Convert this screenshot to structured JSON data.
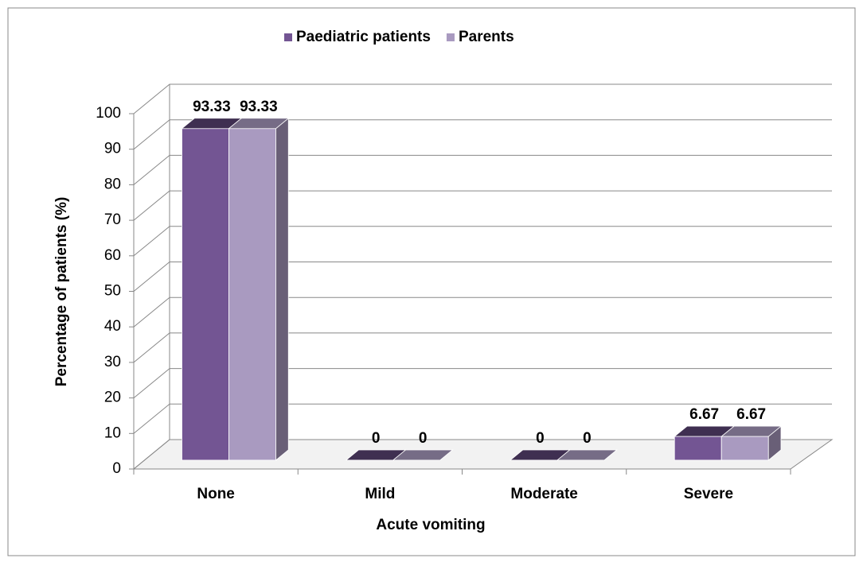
{
  "chart_data": {
    "type": "bar3d",
    "x_label": "Acute vomiting",
    "y_label": "Percentage of patients (%)",
    "categories": [
      "None",
      "Mild",
      "Moderate",
      "Severe"
    ],
    "series": [
      {
        "name": "Paediatric patients",
        "color": "#735593",
        "values": [
          93.33,
          0,
          0,
          6.67
        ]
      },
      {
        "name": "Parents",
        "color": "#a99ac0",
        "values": [
          93.33,
          0,
          0,
          6.67
        ]
      }
    ],
    "ylim": [
      0,
      100
    ],
    "yticks": [
      0,
      10,
      20,
      30,
      40,
      50,
      60,
      70,
      80,
      90,
      100
    ],
    "grid": true,
    "legend": "top"
  }
}
